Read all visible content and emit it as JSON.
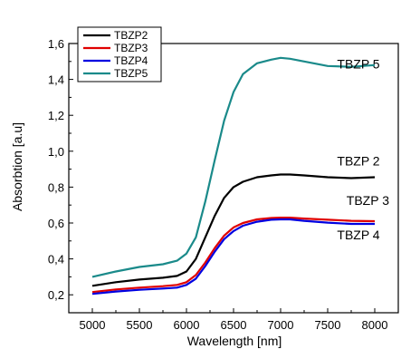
{
  "chart_data": {
    "type": "line",
    "title": "",
    "xlabel": "Wavelength [nm]",
    "ylabel": "Absorbtion [a.u]",
    "xlim": [
      4750,
      8250
    ],
    "ylim": [
      0.1,
      1.6
    ],
    "xticks": [
      5000,
      5500,
      6000,
      6500,
      7000,
      7500,
      8000
    ],
    "xtick_labels": [
      "5000",
      "5500",
      "6000",
      "6500",
      "7000",
      "7500",
      "8000"
    ],
    "yticks": [
      0.2,
      0.4,
      0.6,
      0.8,
      1.0,
      1.2,
      1.4,
      1.6
    ],
    "ytick_labels": [
      "0,2",
      "0,4",
      "0,6",
      "0,8",
      "1,0",
      "1,2",
      "1,4",
      "1,6"
    ],
    "grid": false,
    "legend_position": "top-left",
    "x": [
      5000,
      5250,
      5500,
      5750,
      5900,
      6000,
      6100,
      6200,
      6300,
      6400,
      6500,
      6600,
      6750,
      6900,
      7000,
      7100,
      7250,
      7500,
      7750,
      8000
    ],
    "series": [
      {
        "name": "TBZP2",
        "color": "#000000",
        "values": [
          0.25,
          0.27,
          0.285,
          0.295,
          0.305,
          0.33,
          0.4,
          0.52,
          0.64,
          0.74,
          0.8,
          0.83,
          0.855,
          0.865,
          0.87,
          0.87,
          0.865,
          0.855,
          0.85,
          0.855
        ]
      },
      {
        "name": "TBZP3",
        "color": "#e00000",
        "values": [
          0.215,
          0.23,
          0.24,
          0.248,
          0.255,
          0.27,
          0.31,
          0.38,
          0.46,
          0.53,
          0.575,
          0.6,
          0.62,
          0.628,
          0.63,
          0.63,
          0.625,
          0.618,
          0.612,
          0.61
        ]
      },
      {
        "name": "TBZP4",
        "color": "#0000e0",
        "values": [
          0.205,
          0.218,
          0.228,
          0.235,
          0.24,
          0.255,
          0.29,
          0.36,
          0.44,
          0.51,
          0.555,
          0.585,
          0.607,
          0.618,
          0.62,
          0.62,
          0.612,
          0.602,
          0.595,
          0.595
        ]
      },
      {
        "name": "TBZP5",
        "color": "#1a8a8a",
        "values": [
          0.3,
          0.33,
          0.355,
          0.37,
          0.39,
          0.43,
          0.52,
          0.72,
          0.95,
          1.17,
          1.33,
          1.43,
          1.49,
          1.51,
          1.52,
          1.515,
          1.5,
          1.475,
          1.47,
          1.48
        ]
      }
    ],
    "annotations": [
      {
        "text": "TBZP 5",
        "x": 7600,
        "y": 1.46
      },
      {
        "text": "TBZP 2",
        "x": 7600,
        "y": 0.92
      },
      {
        "text": "TBZP 3",
        "x": 7700,
        "y": 0.7
      },
      {
        "text": "TBZP 4",
        "x": 7600,
        "y": 0.51
      }
    ]
  }
}
